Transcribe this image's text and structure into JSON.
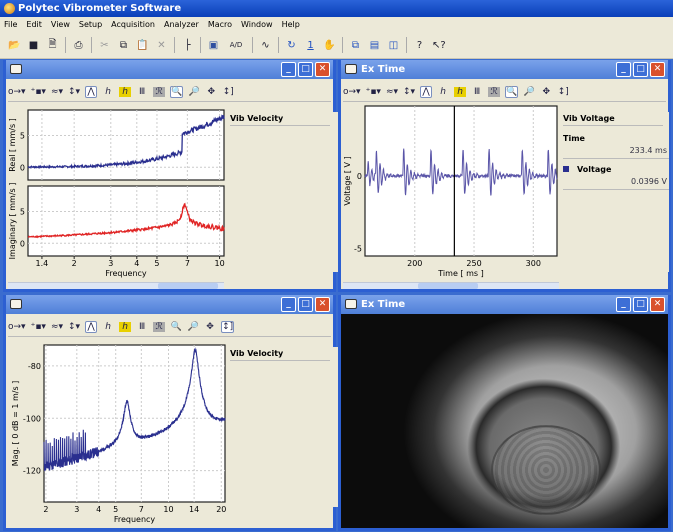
{
  "app": {
    "title": "Polytec Vibrometer Software"
  },
  "menu": [
    "File",
    "Edit",
    "View",
    "Setup",
    "Acquisition",
    "Analyzer",
    "Macro",
    "Window",
    "Help"
  ],
  "toolbar": {
    "icons": [
      "open-icon",
      "save-icon",
      "document-icon",
      "print-icon",
      "cut-icon",
      "copy-icon",
      "paste-icon",
      "delete-icon",
      "tree-icon",
      "device-icon",
      "ad-icon",
      "wave-icon",
      "refresh-icon",
      "single-shot-icon",
      "hand-icon",
      "cascade-icon",
      "tile-horizontal-icon",
      "tile-vertical-icon",
      "help-icon",
      "context-help-icon"
    ],
    "ad_label": "A/D",
    "one_label": "1"
  },
  "colors": {
    "blue_series": "#2a2f8f",
    "red_series": "#e02424",
    "time_series": "#5a55a8"
  },
  "panels": {
    "top_left": {
      "title": "",
      "legend_header": "Vib Velocity",
      "plot_real": {
        "ylabel": "Real [ mm/s ]",
        "yticks": [
          "0",
          "5"
        ]
      },
      "plot_imag": {
        "ylabel": "Imaginary [ mm/s ]",
        "yticks": [
          "0",
          "5"
        ]
      },
      "xticks": [
        "1.4",
        "2",
        "3",
        "4",
        "5",
        "7",
        "10"
      ],
      "xlabel": "Frequency"
    },
    "top_right": {
      "title": "Ex Time",
      "legend_header": "Vib Voltage",
      "time_label": "Time",
      "time_value": "233.4 ms",
      "series_label": "Voltage",
      "series_value": "0.0396 V",
      "ylabel": "Voltage [ V ]",
      "yticks": [
        "0",
        "-5"
      ],
      "xticks": [
        "200",
        "250",
        "300"
      ],
      "xlabel": "Time [ ms ]",
      "cursor_ms": 233.4
    },
    "bottom_left": {
      "title": "",
      "legend_header": "Vib Velocity",
      "ylabel": "Mag. [ 0 dB = 1 m/s ]",
      "yticks": [
        "-80",
        "-100",
        "-120"
      ],
      "xticks": [
        "2",
        "3",
        "4",
        "5",
        "7",
        "10",
        "14",
        "20"
      ],
      "xlabel": "Frequency"
    },
    "bottom_right": {
      "title": "Ex Time"
    }
  }
}
